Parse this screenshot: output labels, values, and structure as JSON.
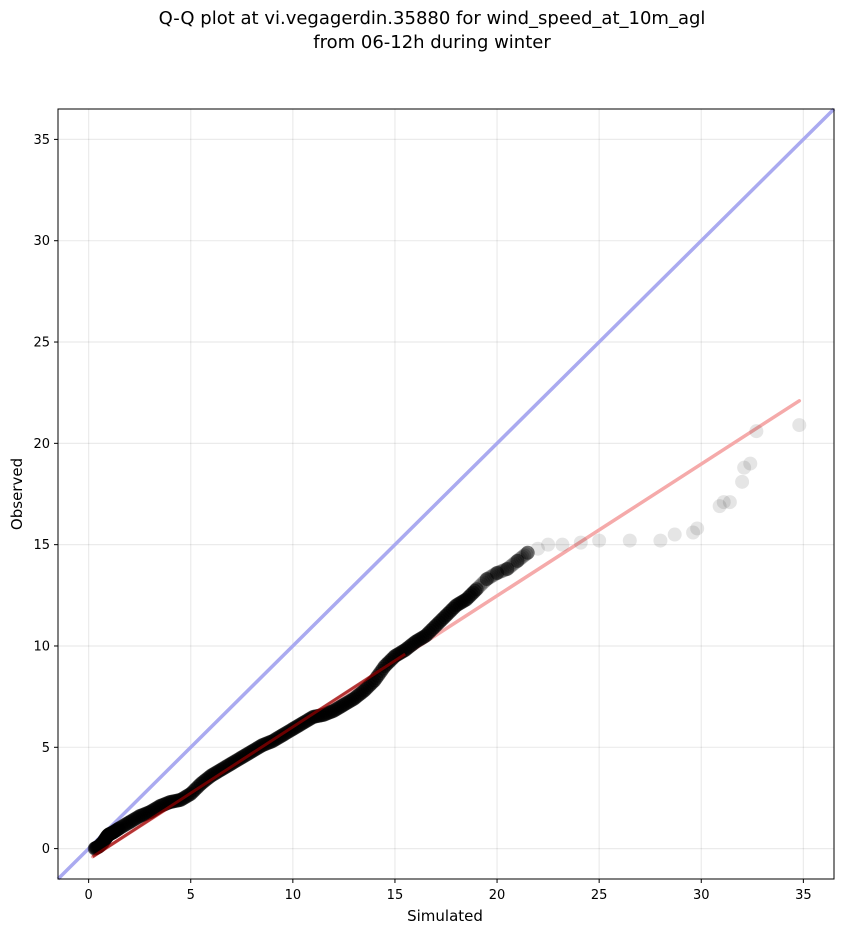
{
  "chart_data": {
    "type": "scatter",
    "title": [
      "Q-Q plot at vi.vegagerdin.35880 for wind_speed_at_10m_agl",
      "from 06-12h during winter"
    ],
    "xlabel": "Simulated",
    "ylabel": "Observed",
    "xlim": [
      -1.5,
      36.5
    ],
    "ylim": [
      -1.5,
      36.5
    ],
    "xticks": [
      0,
      5,
      10,
      15,
      20,
      25,
      30,
      35
    ],
    "yticks": [
      0,
      5,
      10,
      15,
      20,
      25,
      30,
      35
    ],
    "grid": true,
    "colors": {
      "points": "#000000",
      "identity_line": "#aaaaf0",
      "fit_line": "#f5aaaa",
      "short_fit_line": "#990000"
    },
    "identity_line": {
      "x": [
        -1.5,
        36.5
      ],
      "y": [
        -1.5,
        36.5
      ]
    },
    "fit_line": {
      "x": [
        0.2,
        34.8
      ],
      "y": [
        -0.4,
        22.1
      ]
    },
    "short_fit_line": {
      "x": [
        0.2,
        15.5
      ],
      "y": [
        -0.4,
        9.6
      ]
    },
    "series": [
      {
        "x": [
          0.3,
          0.5,
          0.7,
          0.9,
          1.0,
          1.2,
          1.5,
          2.0,
          2.5,
          3.0,
          3.5,
          4.0,
          4.5,
          5.0,
          5.5,
          6.0,
          6.5,
          7.0,
          7.5,
          8.0,
          8.5,
          9.0,
          9.5,
          10.0,
          10.5,
          11.0,
          11.5,
          12.0,
          12.5,
          13.0,
          13.5,
          14.0,
          14.5,
          15.0,
          15.5,
          16.0,
          16.5,
          17.0,
          17.5,
          18.0,
          18.5,
          19.0,
          19.5,
          20.0,
          20.5,
          21.0,
          21.5,
          22.0,
          22.5,
          23.2,
          24.1,
          25.0,
          26.5,
          28.0,
          28.7,
          29.6,
          29.8,
          30.9,
          31.1,
          31.4,
          32.0,
          32.1,
          32.4,
          32.7,
          34.8
        ],
        "y": [
          0.0,
          0.1,
          0.3,
          0.6,
          0.7,
          0.8,
          1.0,
          1.3,
          1.6,
          1.8,
          2.1,
          2.3,
          2.4,
          2.7,
          3.2,
          3.6,
          3.9,
          4.2,
          4.5,
          4.8,
          5.1,
          5.3,
          5.6,
          5.9,
          6.2,
          6.5,
          6.6,
          6.8,
          7.1,
          7.4,
          7.8,
          8.3,
          9.0,
          9.5,
          9.8,
          10.2,
          10.5,
          11.0,
          11.5,
          12.0,
          12.3,
          12.8,
          13.3,
          13.6,
          13.8,
          14.2,
          14.6,
          14.8,
          15.0,
          15.0,
          15.1,
          15.2,
          15.2,
          15.2,
          15.5,
          15.6,
          15.8,
          16.9,
          17.1,
          17.1,
          18.1,
          18.8,
          19.0,
          20.6,
          20.9
        ]
      }
    ]
  }
}
